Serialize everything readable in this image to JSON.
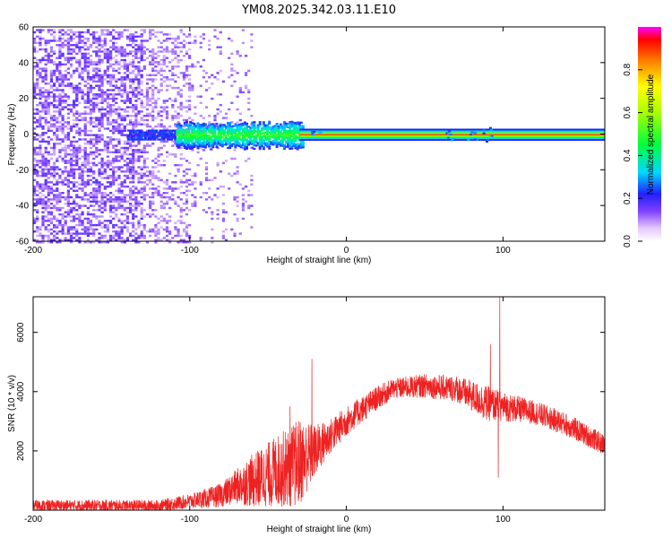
{
  "chart_data": [
    {
      "type": "heatmap",
      "title": "YM08.2025.342.03.11.E10",
      "xlabel": "Height of straight line (km)",
      "ylabel": "Frequency (Hz)",
      "xlim": [
        -200,
        165
      ],
      "ylim": [
        -60,
        60
      ],
      "x_ticks": [
        -200,
        -100,
        0,
        100
      ],
      "y_ticks": [
        -60,
        -40,
        -20,
        0,
        20,
        40,
        60
      ],
      "colorbar": {
        "label": "Normalized spectral amplitude",
        "range": [
          0,
          1
        ],
        "ticks": [
          "0.0",
          "0.2",
          "0.4",
          "0.6",
          "0.8"
        ]
      },
      "features": {
        "noise_region_x": [
          -200,
          -70
        ],
        "signal_start_x": -140,
        "strong_line_start_x": -30,
        "strong_line_freq_hz": 0,
        "broadened_region_x": [
          -110,
          -30
        ],
        "broadened_half_width_hz": 8
      }
    },
    {
      "type": "line",
      "xlabel": "Height of straight line (km)",
      "ylabel": "SNR (10 * v/v)",
      "xlim": [
        -200,
        165
      ],
      "ylim": [
        0,
        7200
      ],
      "x_ticks": [
        -200,
        -100,
        0,
        100
      ],
      "y_ticks": [
        2000,
        4000,
        6000
      ],
      "series": [
        {
          "color": "#ee2222",
          "envelope_x": [
            -200,
            -120,
            -100,
            -80,
            -70,
            -60,
            -50,
            -40,
            -30,
            -20,
            -10,
            0,
            10,
            20,
            30,
            50,
            70,
            90,
            100,
            120,
            140,
            165
          ],
          "envelope_y": [
            150,
            150,
            300,
            500,
            800,
            1000,
            1200,
            1400,
            1600,
            2000,
            2500,
            3000,
            3400,
            3800,
            4100,
            4200,
            4100,
            3600,
            3500,
            3300,
            2900,
            2200
          ],
          "noise_amplitude": [
            200,
            200,
            250,
            400,
            600,
            900,
            1100,
            1300,
            1500,
            900,
            600,
            500,
            450,
            400,
            350,
            400,
            450,
            600,
            500,
            400,
            400,
            350
          ],
          "spikes": [
            {
              "x": -22,
              "y": 5100
            },
            {
              "x": -36,
              "y": 3500
            },
            {
              "x": 92,
              "y": 5600
            },
            {
              "x": 98,
              "y": 7200
            },
            {
              "x": 97,
              "y": 1100
            }
          ]
        }
      ]
    }
  ]
}
